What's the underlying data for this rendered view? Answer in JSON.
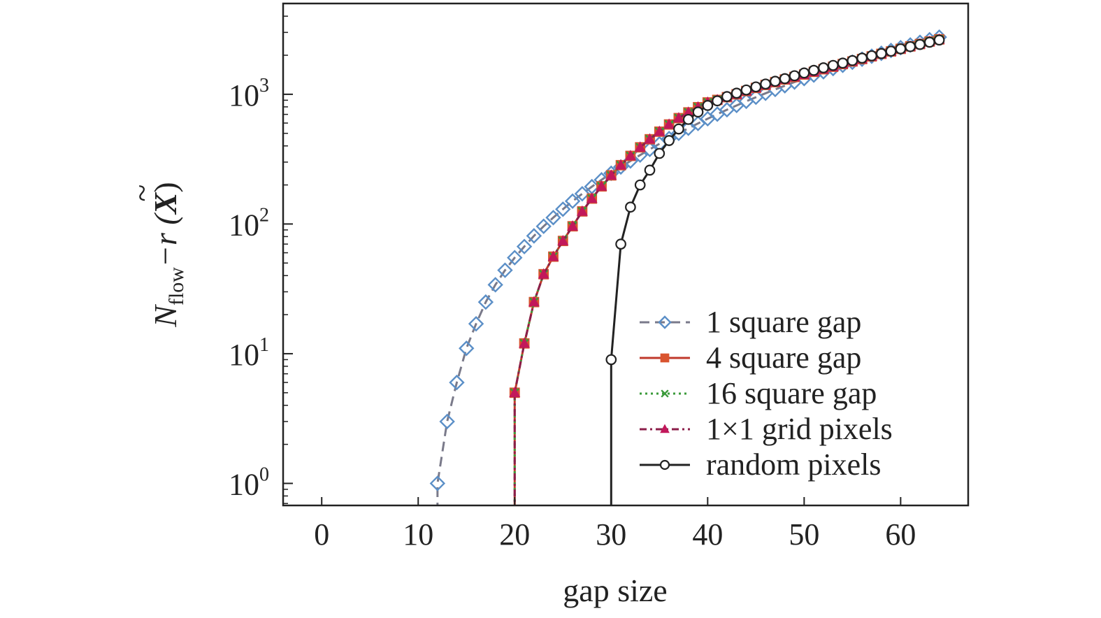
{
  "chart_data": {
    "type": "line",
    "title": "",
    "xlabel": "gap size",
    "ylabel": "N_flow − r(X̃)",
    "ylabel_parts": {
      "main": "N",
      "sub": "flow",
      "rest": "−r (",
      "var": "X",
      "close": ")"
    },
    "xlim": [
      -4,
      67
    ],
    "ylim_log10": [
      -0.17,
      3.7
    ],
    "xscale": "linear",
    "yscale": "log",
    "xticks": [
      0,
      10,
      20,
      30,
      40,
      50,
      60
    ],
    "xtick_labels": [
      "0",
      "10",
      "20",
      "30",
      "40",
      "50",
      "60"
    ],
    "yticks": [
      1,
      10,
      100,
      1000
    ],
    "ytick_labels": [
      {
        "base": "10",
        "exp": "0"
      },
      {
        "base": "10",
        "exp": "1"
      },
      {
        "base": "10",
        "exp": "2"
      },
      {
        "base": "10",
        "exp": "3"
      }
    ],
    "grid": false,
    "legend_position": "lower-right",
    "series": [
      {
        "name": "1 square gap",
        "color": "#5b8fc7",
        "line_color": "#7a7a8a",
        "dash": "dashed",
        "marker": "diamond",
        "x": [
          12,
          13,
          14,
          15,
          16,
          17,
          18,
          19,
          20,
          21,
          22,
          23,
          24,
          25,
          26,
          27,
          28,
          29,
          30,
          31,
          32,
          33,
          34,
          35,
          36,
          37,
          38,
          39,
          40,
          41,
          42,
          43,
          44,
          45,
          46,
          47,
          48,
          49,
          50,
          51,
          52,
          53,
          54,
          55,
          56,
          57,
          58,
          59,
          60,
          61,
          62,
          63,
          64
        ],
        "y": [
          1,
          3,
          6,
          11,
          17,
          25,
          34,
          44,
          55,
          67,
          81,
          96,
          112,
          130,
          150,
          171,
          194,
          219,
          246,
          275,
          306,
          340,
          376,
          415,
          456,
          500,
          547,
          596,
          648,
          703,
          760,
          820,
          883,
          949,
          1018,
          1090,
          1164,
          1242,
          1322,
          1405,
          1491,
          1580,
          1672,
          1767,
          1865,
          1966,
          2070,
          2177,
          2287,
          2400,
          2516,
          2635,
          2757
        ]
      },
      {
        "name": "4 square gap",
        "color": "#d9542f",
        "line_color": "#c0392b",
        "dash": "solid",
        "marker": "square",
        "x": [
          20,
          21,
          22,
          23,
          24,
          25,
          26,
          27,
          28,
          29,
          30,
          31,
          32,
          33,
          34,
          35,
          36,
          37,
          38,
          39,
          40,
          41,
          42,
          43,
          44,
          45,
          46,
          47,
          48,
          49,
          50,
          51,
          52,
          53,
          54,
          55,
          56,
          57,
          58,
          59,
          60,
          61,
          62,
          63,
          64
        ],
        "y": [
          5,
          12,
          25,
          41,
          56,
          74,
          96,
          125,
          157,
          195,
          237,
          284,
          335,
          390,
          450,
          515,
          585,
          655,
          725,
          795,
          865,
          905,
          950,
          1000,
          1060,
          1120,
          1180,
          1240,
          1300,
          1360,
          1420,
          1490,
          1560,
          1630,
          1710,
          1790,
          1870,
          1960,
          2050,
          2140,
          2240,
          2340,
          2440,
          2550,
          2650
        ]
      },
      {
        "name": "16 square gap",
        "color": "#3a9a3a",
        "line_color": "#3a9a3a",
        "dash": "dotted",
        "marker": "x",
        "x": [
          20,
          21,
          22,
          23,
          24,
          25,
          26,
          27,
          28,
          29,
          30,
          31,
          32,
          33,
          34,
          35,
          36,
          37,
          38,
          39,
          40,
          41,
          42,
          43,
          44,
          45,
          46,
          47,
          48,
          49,
          50,
          51,
          52,
          53,
          54,
          55,
          56,
          57,
          58,
          59,
          60,
          61,
          62,
          63,
          64
        ],
        "y": [
          5,
          12,
          25,
          41,
          56,
          74,
          96,
          125,
          157,
          195,
          237,
          284,
          335,
          390,
          450,
          515,
          585,
          655,
          725,
          795,
          865,
          905,
          950,
          1000,
          1060,
          1120,
          1180,
          1240,
          1300,
          1360,
          1420,
          1490,
          1560,
          1630,
          1710,
          1790,
          1870,
          1960,
          2050,
          2140,
          2240,
          2340,
          2440,
          2550,
          2650
        ]
      },
      {
        "name": "1×1 grid pixels",
        "color": "#c2185b",
        "line_color": "#8b1e4a",
        "dash": "dashdot",
        "marker": "triangle",
        "x": [
          20,
          21,
          22,
          23,
          24,
          25,
          26,
          27,
          28,
          29,
          30,
          31,
          32,
          33,
          34,
          35,
          36,
          37,
          38,
          39,
          40,
          41,
          42,
          43,
          44,
          45,
          46,
          47,
          48,
          49,
          50,
          51,
          52,
          53,
          54,
          55,
          56,
          57,
          58,
          59,
          60,
          61,
          62,
          63,
          64
        ],
        "y": [
          5,
          12,
          25,
          41,
          56,
          74,
          96,
          125,
          157,
          195,
          237,
          284,
          335,
          390,
          450,
          515,
          585,
          655,
          725,
          795,
          865,
          905,
          950,
          1000,
          1060,
          1120,
          1180,
          1240,
          1300,
          1360,
          1420,
          1490,
          1560,
          1630,
          1710,
          1790,
          1870,
          1960,
          2050,
          2140,
          2240,
          2340,
          2440,
          2550,
          2650
        ]
      },
      {
        "name": "random pixels",
        "color": "#222222",
        "line_color": "#222222",
        "dash": "solid",
        "marker": "circle",
        "x": [
          30,
          31,
          32,
          33,
          34,
          35,
          36,
          37,
          38,
          39,
          40,
          41,
          42,
          43,
          44,
          45,
          46,
          47,
          48,
          49,
          50,
          51,
          52,
          53,
          54,
          55,
          56,
          57,
          58,
          59,
          60,
          61,
          62,
          63,
          64
        ],
        "y": [
          9,
          70,
          135,
          200,
          260,
          350,
          440,
          540,
          640,
          730,
          820,
          890,
          960,
          1020,
          1080,
          1140,
          1200,
          1260,
          1320,
          1390,
          1460,
          1530,
          1600,
          1670,
          1740,
          1820,
          1900,
          1980,
          2060,
          2150,
          2240,
          2330,
          2420,
          2520,
          2620
        ]
      }
    ]
  }
}
